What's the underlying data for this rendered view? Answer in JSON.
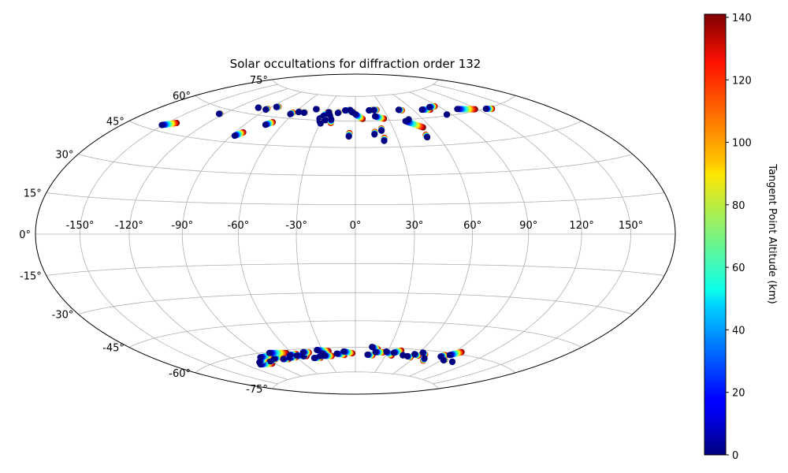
{
  "chart_data": {
    "type": "scatter",
    "projection": "hammer",
    "title": "Solar occultations for diffraction order 132",
    "xlabel": "",
    "ylabel": "",
    "grid": true,
    "lon_ticks": [
      -150,
      -120,
      -90,
      -60,
      -30,
      0,
      30,
      60,
      90,
      120,
      150
    ],
    "lon_tick_labels": [
      "-150°",
      "-120°",
      "-90°",
      "-60°",
      "-30°",
      "0°",
      "30°",
      "60°",
      "90°",
      "120°",
      "150°"
    ],
    "lat_ticks": [
      75,
      60,
      45,
      30,
      15,
      0,
      -15,
      -30,
      -45,
      -60,
      -75
    ],
    "lat_tick_labels": [
      "75°",
      "60°",
      "45°",
      "30°",
      "15°",
      "0°",
      "-15°",
      "-30°",
      "-45°",
      "-60°",
      "-75°"
    ],
    "colorbar": {
      "label": "Tangent Point Altitude (km)",
      "range": [
        0,
        141
      ],
      "ticks": [
        0,
        20,
        40,
        60,
        80,
        100,
        120,
        140
      ],
      "tick_labels": [
        "0",
        "20",
        "40",
        "60",
        "80",
        "100",
        "120",
        "140"
      ],
      "colormap": "jet"
    },
    "tracks": [
      {
        "lon0": -151,
        "lat0": 47.5,
        "lon1": -143,
        "lat1": 49.7
      },
      {
        "lon0": -124,
        "lat0": 57.3,
        "lon1": -123.5,
        "lat1": 57.5
      },
      {
        "lon0": -101,
        "lat0": 63.5,
        "lon1": -100.5,
        "lat1": 63.6
      },
      {
        "lon0": -91,
        "lat0": 63.2,
        "lon1": -91,
        "lat1": 63.8
      },
      {
        "lon0": -85,
        "lat0": 65.3,
        "lon1": -83.5,
        "lat1": 65.6
      },
      {
        "lon0": -87.5,
        "lat0": 48.4,
        "lon1": -84,
        "lat1": 50.5
      },
      {
        "lon0": -73.5,
        "lat0": 55.5,
        "lon1": -70,
        "lat1": 57.2
      },
      {
        "lon0": -62.5,
        "lat0": 62.4,
        "lon1": -61.8,
        "lat1": 63.3
      },
      {
        "lon0": -56.8,
        "lat0": 63.9,
        "lon1": -56.5,
        "lat1": 64.3
      },
      {
        "lon0": -51,
        "lat0": 63.8,
        "lon1": -50.5,
        "lat1": 64
      },
      {
        "lon0": -42,
        "lat0": 66.3,
        "lon1": -41,
        "lat1": 66.3
      },
      {
        "lon0": -32.5,
        "lat0": 60.9,
        "lon1": -30,
        "lat1": 62.4
      },
      {
        "lon0": -30.2,
        "lat0": 62.5,
        "lon1": -28,
        "lat1": 64.7
      },
      {
        "lon0": -27,
        "lat0": 64.8,
        "lon1": -26.2,
        "lat1": 64.9
      },
      {
        "lon0": -24.5,
        "lat0": 63.1,
        "lon1": -23.2,
        "lat1": 62.1
      },
      {
        "lon0": -31,
        "lat0": 59.3,
        "lon1": -30.5,
        "lat1": 59.5
      },
      {
        "lon0": -29.5,
        "lat0": 58.2,
        "lon1": -29.3,
        "lat1": 58.4
      },
      {
        "lon0": -26.5,
        "lat0": 60.2,
        "lon1": -26,
        "lat1": 60.5
      },
      {
        "lon0": -21.7,
        "lat0": 60.7,
        "lon1": -21,
        "lat1": 58.7
      },
      {
        "lon0": -17.5,
        "lat0": 64.6,
        "lon1": -16.8,
        "lat1": 65
      },
      {
        "lon0": -10.8,
        "lat0": 66.2,
        "lon1": -6.3,
        "lat1": 66.4
      },
      {
        "lon0": -5.5,
        "lat0": 66.5,
        "lon1": -4.5,
        "lat1": 65.7
      },
      {
        "lon0": -3.3,
        "lat0": 65.2,
        "lon1": -2.2,
        "lat1": 65.3
      },
      {
        "lon0": 0,
        "lat0": 64,
        "lon1": 6.5,
        "lat1": 61.2
      },
      {
        "lon0": -4.8,
        "lat0": 51.1,
        "lon1": -4.5,
        "lat1": 53
      },
      {
        "lon0": 14.2,
        "lat0": 66.2,
        "lon1": 17.6,
        "lat1": 66.4
      },
      {
        "lon0": 19.5,
        "lat0": 66.3,
        "lon1": 22.3,
        "lat1": 66.4
      },
      {
        "lon0": 14.2,
        "lat0": 52.2,
        "lon1": 14.8,
        "lat1": 53.6
      },
      {
        "lon0": 20.2,
        "lat0": 54.2,
        "lon1": 20.6,
        "lat1": 55.5
      },
      {
        "lon0": 18.5,
        "lat0": 62.6,
        "lon1": 25.8,
        "lat1": 61.1
      },
      {
        "lon0": 20.1,
        "lat0": 48.5,
        "lon1": 20.8,
        "lat1": 50.2
      },
      {
        "lon0": 45.5,
        "lat0": 65.8,
        "lon1": 48.3,
        "lat1": 65.4
      },
      {
        "lon0": 43.5,
        "lat0": 59.1,
        "lon1": 54,
        "lat1": 55.1
      },
      {
        "lon0": 47.2,
        "lat0": 59.8,
        "lon1": 47.5,
        "lat1": 60.1
      },
      {
        "lon0": 51.7,
        "lat0": 49.6,
        "lon1": 51.8,
        "lat1": 50.9
      },
      {
        "lon0": 69,
        "lat0": 64.7,
        "lon1": 77,
        "lat1": 64.2
      },
      {
        "lon0": 80,
        "lat0": 65.6,
        "lon1": 86.2,
        "lat1": 65.6
      },
      {
        "lon0": 85.5,
        "lat0": 60.6,
        "lon1": 86,
        "lat1": 60.7
      },
      {
        "lon0": 103,
        "lat0": 62.5,
        "lon1": 118,
        "lat1": 60.8
      },
      {
        "lon0": 128,
        "lat0": 59.9,
        "lon1": 133,
        "lat1": 59.3
      },
      {
        "lon0": -106,
        "lat0": -65.5,
        "lon1": -93,
        "lat1": -66.1
      },
      {
        "lon0": -103,
        "lat0": -64.4,
        "lon1": -91,
        "lat1": -63.2
      },
      {
        "lon0": -91,
        "lat0": -64.9,
        "lon1": -83,
        "lat1": -64.2
      },
      {
        "lon0": -94,
        "lat0": -62.2,
        "lon1": -80,
        "lat1": -61.8
      },
      {
        "lon0": -83,
        "lat0": -63.8,
        "lon1": -76,
        "lat1": -63.4
      },
      {
        "lon0": -80,
        "lat0": -60.6,
        "lon1": -65,
        "lat1": -61.6
      },
      {
        "lon0": -75,
        "lat0": -64.6,
        "lon1": -70,
        "lat1": -65
      },
      {
        "lon0": -67,
        "lat0": -64.3,
        "lon1": -60,
        "lat1": -64.3
      },
      {
        "lon0": -64,
        "lat0": -62.9,
        "lon1": -57,
        "lat1": -62.6
      },
      {
        "lon0": -58,
        "lat0": -63.5,
        "lon1": -49,
        "lat1": -64.2
      },
      {
        "lon0": -52,
        "lat0": -64.2,
        "lon1": -47,
        "lat1": -62.9
      },
      {
        "lon0": -49,
        "lat0": -61.9,
        "lon1": -44,
        "lat1": -62.3
      },
      {
        "lon0": -43,
        "lat0": -65.6,
        "lon1": -36,
        "lat1": -65.6
      },
      {
        "lon0": -36,
        "lat0": -64.7,
        "lon1": -29,
        "lat1": -64.4
      },
      {
        "lon0": -35,
        "lat0": -61.1,
        "lon1": -25,
        "lat1": -62
      },
      {
        "lon0": -32,
        "lat0": -63.2,
        "lon1": -26,
        "lat1": -63.4
      },
      {
        "lon0": -31,
        "lat0": -64.6,
        "lon1": -24,
        "lat1": -64.9
      },
      {
        "lon0": -18,
        "lat0": -63.6,
        "lon1": -11,
        "lat1": -64.5
      },
      {
        "lon0": -11,
        "lat0": -62.4,
        "lon1": -3,
        "lat1": -63.5
      },
      {
        "lon0": 12,
        "lat0": -64.3,
        "lon1": 17,
        "lat1": -64.6
      },
      {
        "lon0": 14.5,
        "lat0": -59.7,
        "lon1": 20,
        "lat1": -60.9
      },
      {
        "lon0": 19,
        "lat0": -62.7,
        "lon1": 26,
        "lat1": -62.7
      },
      {
        "lon0": 29,
        "lat0": -62.2,
        "lon1": 36,
        "lat1": -64.3
      },
      {
        "lon0": 36.5,
        "lat0": -62.7,
        "lon1": 42,
        "lat1": -61.2
      },
      {
        "lon0": 47,
        "lat0": -63.8,
        "lon1": 47,
        "lat1": -63.8
      },
      {
        "lon0": 52,
        "lat0": -64.1,
        "lon1": 56,
        "lat1": -64.5
      },
      {
        "lon0": 57,
        "lat0": -62.7,
        "lon1": 62,
        "lat1": -63.3
      },
      {
        "lon0": 63,
        "lat0": -61.4,
        "lon1": 67,
        "lat1": -62.3
      },
      {
        "lon0": 71,
        "lat0": -64.4,
        "lon1": 73,
        "lat1": -65.7
      },
      {
        "lon0": 84,
        "lat0": -62.5,
        "lon1": 86,
        "lat1": -61.5
      },
      {
        "lon0": 90,
        "lat0": -61.1,
        "lon1": 96,
        "lat1": -58.8
      },
      {
        "lon0": 92,
        "lat0": -64.1,
        "lon1": 93,
        "lat1": -63.9
      },
      {
        "lon0": 103,
        "lat0": -64.1,
        "lon1": 103,
        "lat1": -64.1
      }
    ]
  }
}
